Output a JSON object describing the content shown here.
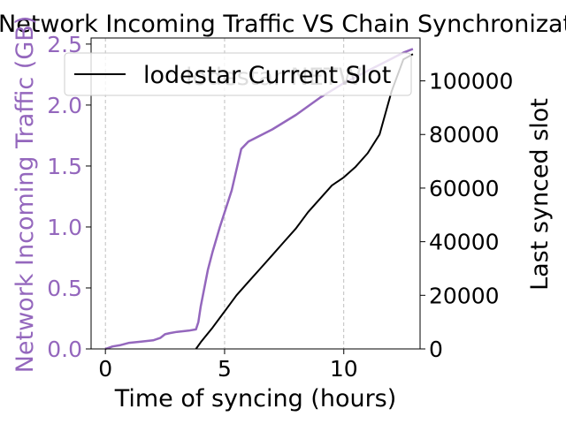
{
  "chart_data": {
    "type": "line",
    "title": "Network Incoming Traffic VS Chain Synchronization",
    "xlabel": "Time of syncing (hours)",
    "ylabel_left": "Network Incoming Traffic (GB)",
    "ylabel_right": "Last synced slot",
    "xlim": [
      -0.6,
      13.2
    ],
    "ylim_left": [
      0,
      2.55
    ],
    "ylim_right": [
      0,
      116000
    ],
    "x_ticks": [
      0,
      5,
      10
    ],
    "y_left_ticks": [
      0.0,
      0.5,
      1.0,
      1.5,
      2.0,
      2.5
    ],
    "y_right_ticks": [
      0,
      20000,
      40000,
      60000,
      80000,
      100000
    ],
    "grid": "vertical dashed lines at x ticks",
    "legend": {
      "placement": "top",
      "entries": [
        "lodestar Current Slot"
      ],
      "hidden_entry_fragment": "lodestar NETW"
    },
    "series": [
      {
        "name": "lodestar NETW",
        "axis": "left",
        "color": "#9467bd",
        "points": [
          [
            0,
            0
          ],
          [
            0.3,
            0.02
          ],
          [
            0.6,
            0.03
          ],
          [
            1.0,
            0.05
          ],
          [
            1.5,
            0.06
          ],
          [
            2.0,
            0.07
          ],
          [
            2.3,
            0.09
          ],
          [
            2.5,
            0.12
          ],
          [
            2.7,
            0.13
          ],
          [
            3.0,
            0.14
          ],
          [
            3.5,
            0.15
          ],
          [
            3.8,
            0.16
          ],
          [
            3.9,
            0.22
          ],
          [
            4.0,
            0.35
          ],
          [
            4.3,
            0.65
          ],
          [
            4.5,
            0.8
          ],
          [
            4.8,
            1.0
          ],
          [
            5.3,
            1.3
          ],
          [
            5.7,
            1.64
          ],
          [
            6.0,
            1.7
          ],
          [
            7.0,
            1.8
          ],
          [
            8.0,
            1.92
          ],
          [
            9.0,
            2.06
          ],
          [
            10.0,
            2.18
          ],
          [
            11.0,
            2.28
          ],
          [
            12.0,
            2.38
          ],
          [
            12.5,
            2.43
          ],
          [
            12.9,
            2.46
          ]
        ]
      },
      {
        "name": "lodestar Current Slot",
        "axis": "right",
        "color": "#000000",
        "points": [
          [
            3.8,
            0
          ],
          [
            4.0,
            2500
          ],
          [
            4.5,
            8000
          ],
          [
            5.0,
            14000
          ],
          [
            5.5,
            20000
          ],
          [
            6.0,
            25000
          ],
          [
            6.5,
            30000
          ],
          [
            7.0,
            35000
          ],
          [
            7.5,
            40000
          ],
          [
            8.0,
            45000
          ],
          [
            8.5,
            51000
          ],
          [
            9.0,
            56000
          ],
          [
            9.5,
            61000
          ],
          [
            10.0,
            64000
          ],
          [
            10.5,
            68000
          ],
          [
            11.0,
            73000
          ],
          [
            11.5,
            80000
          ],
          [
            12.0,
            96000
          ],
          [
            12.5,
            108000
          ],
          [
            12.9,
            110000
          ]
        ]
      }
    ]
  }
}
